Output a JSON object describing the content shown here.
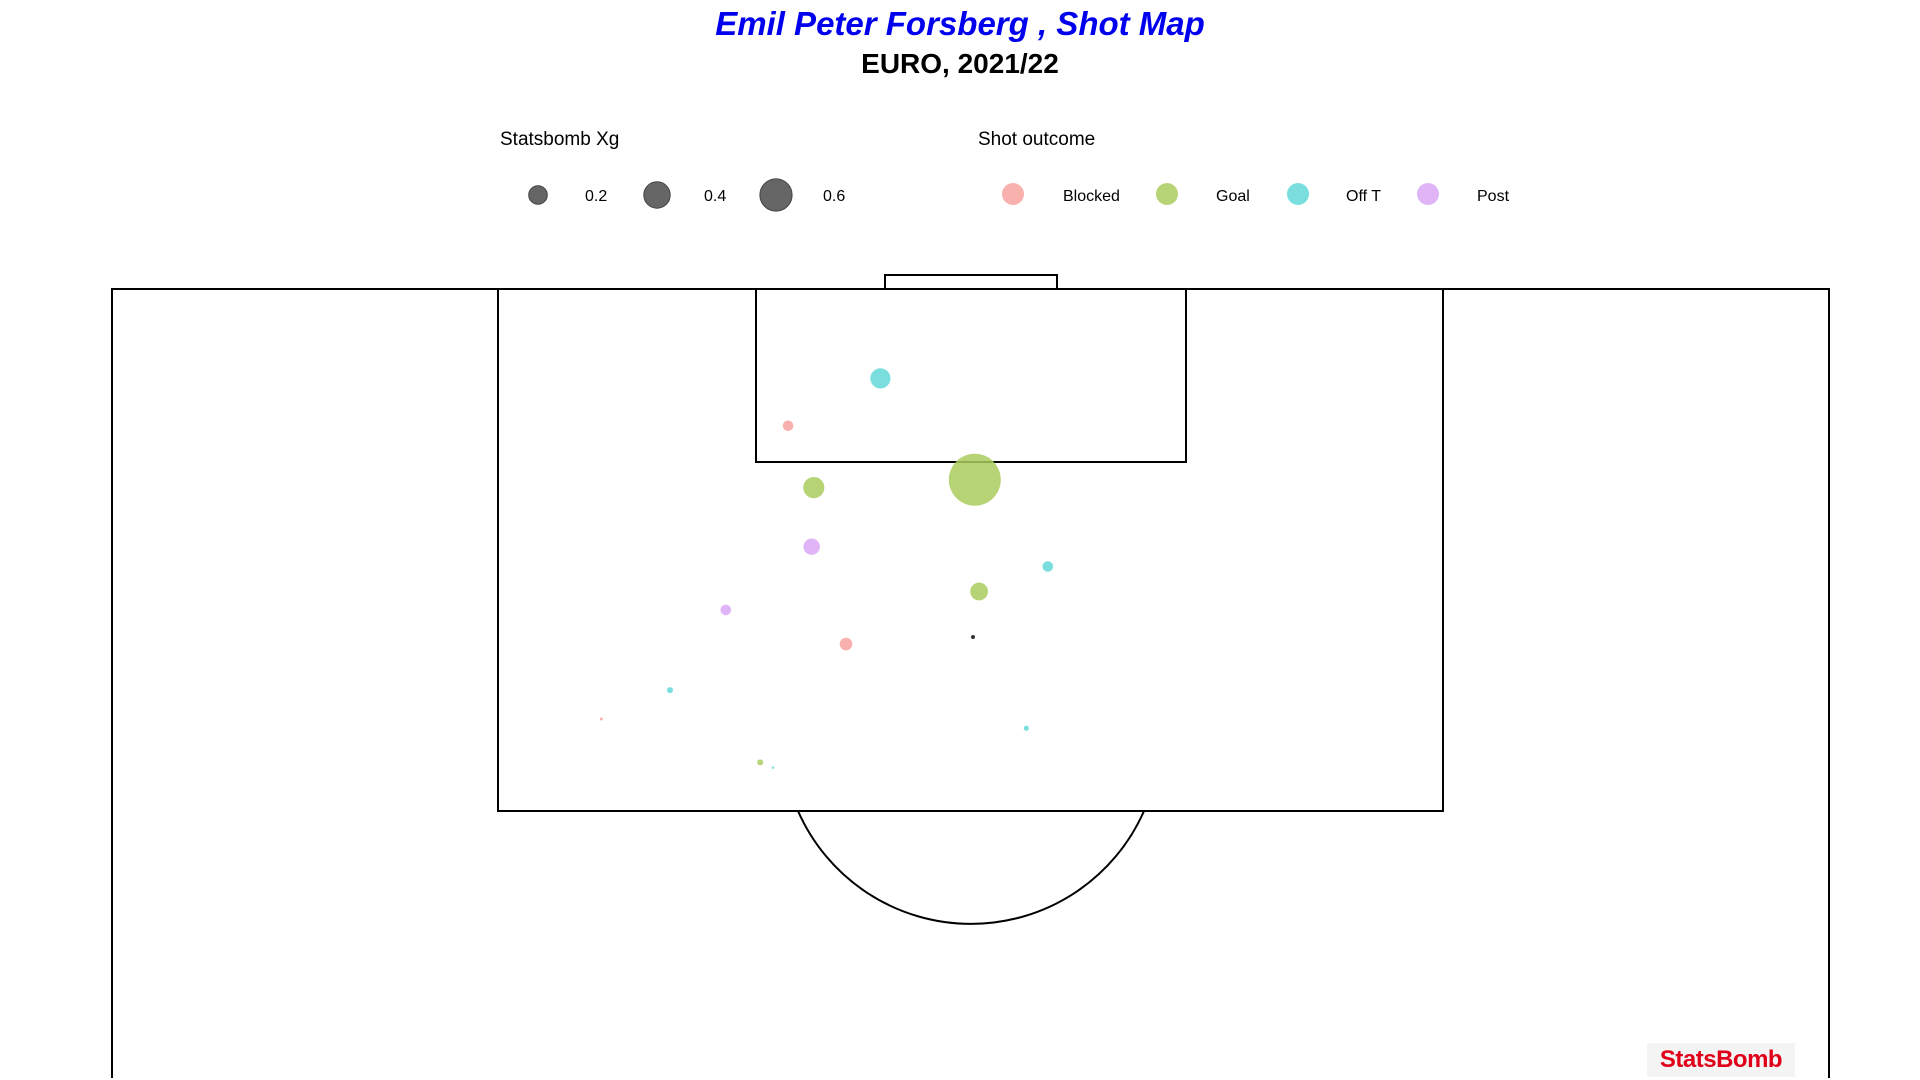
{
  "title": "Emil Peter Forsberg , Shot Map",
  "subtitle": "EURO, 2021/22",
  "brand": "StatsBomb",
  "colors": {
    "title": "#0000ee",
    "Blocked": "#f8a3a0",
    "Goal": "#a9cc5e",
    "Off T": "#63d8d8",
    "Post": "#d9a8f7",
    "size_legend": "#666666"
  },
  "legend_size": {
    "title": "Statsbomb Xg",
    "entries": [
      {
        "value": 0.2,
        "label": "0.2"
      },
      {
        "value": 0.4,
        "label": "0.4"
      },
      {
        "value": 0.6,
        "label": "0.6"
      }
    ]
  },
  "legend_outcome": {
    "title": "Shot outcome",
    "entries": [
      "Blocked",
      "Goal",
      "Off T",
      "Post"
    ]
  },
  "chart_data": {
    "type": "scatter",
    "title": "Emil Peter Forsberg , Shot Map",
    "subtitle": "EURO, 2021/22",
    "x_axis": "pitch width (StatsBomb y, 0-80)",
    "y_axis": "pitch length (StatsBomb x, 60-120)",
    "xlim": [
      0,
      80
    ],
    "ylim": [
      60,
      120
    ],
    "size_variable": "Statsbomb Xg",
    "color_variable": "Shot outcome",
    "points": [
      {
        "x": 35.8,
        "y": 113.2,
        "xg": 0.09,
        "outcome": "Off T"
      },
      {
        "x": 31.5,
        "y": 109.6,
        "xg": 0.025,
        "outcome": "Blocked"
      },
      {
        "x": 32.7,
        "y": 104.9,
        "xg": 0.1,
        "outcome": "Goal"
      },
      {
        "x": 40.2,
        "y": 105.5,
        "xg": 0.6,
        "outcome": "Goal"
      },
      {
        "x": 32.6,
        "y": 100.4,
        "xg": 0.06,
        "outcome": "Post"
      },
      {
        "x": 43.6,
        "y": 98.9,
        "xg": 0.025,
        "outcome": "Off T"
      },
      {
        "x": 40.4,
        "y": 97.0,
        "xg": 0.07,
        "outcome": "Goal"
      },
      {
        "x": 28.6,
        "y": 95.6,
        "xg": 0.025,
        "outcome": "Post"
      },
      {
        "x": 34.2,
        "y": 93.0,
        "xg": 0.035,
        "outcome": "Blocked"
      },
      {
        "x": 26.0,
        "y": 89.5,
        "xg": 0.008,
        "outcome": "Off T"
      },
      {
        "x": 22.8,
        "y": 87.3,
        "xg": 0.002,
        "outcome": "Blocked"
      },
      {
        "x": 42.6,
        "y": 86.6,
        "xg": 0.006,
        "outcome": "Off T"
      },
      {
        "x": 30.2,
        "y": 84.0,
        "xg": 0.008,
        "outcome": "Goal"
      },
      {
        "x": 30.8,
        "y": 83.6,
        "xg": 0.001,
        "outcome": "Off T"
      }
    ]
  }
}
